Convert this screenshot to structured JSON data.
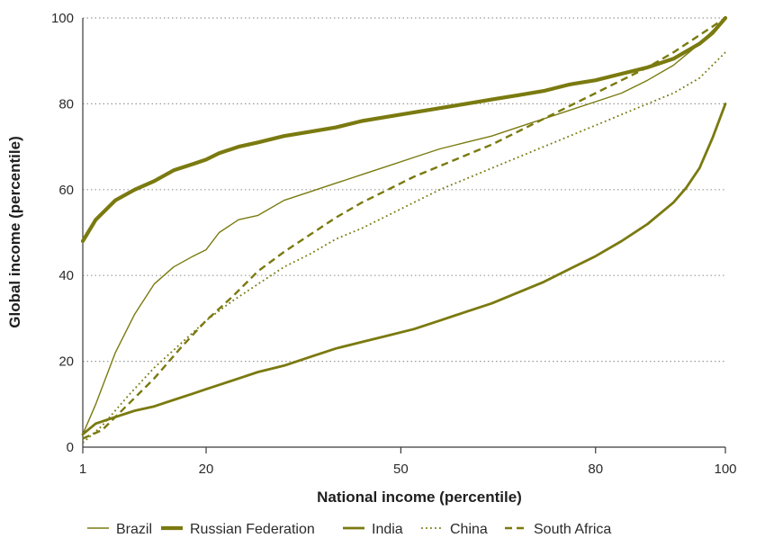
{
  "chart_data": {
    "type": "line",
    "xlabel": "National income (percentile)",
    "ylabel": "Global income (percentile)",
    "xlim": [
      1,
      100
    ],
    "ylim": [
      0,
      100
    ],
    "x_ticks": [
      1,
      20,
      50,
      80,
      100
    ],
    "y_ticks": [
      0,
      20,
      40,
      60,
      80,
      100
    ],
    "grid": "horizontal dotted",
    "legend_position": "bottom",
    "color": "#7a7a10",
    "series": [
      {
        "name": "Brazil",
        "style": "thin-solid",
        "x": [
          1,
          3,
          6,
          9,
          12,
          15,
          18,
          20,
          22,
          25,
          28,
          32,
          36,
          40,
          44,
          48,
          52,
          56,
          60,
          64,
          68,
          72,
          76,
          80,
          84,
          88,
          92,
          96,
          98,
          100
        ],
        "y": [
          3,
          10,
          22,
          31,
          38,
          42,
          44.5,
          46,
          50,
          53,
          54,
          57.5,
          59.5,
          61.5,
          63.5,
          65.5,
          67.5,
          69.5,
          71,
          72.5,
          74.5,
          76.5,
          78.5,
          80.5,
          82.5,
          85.5,
          89,
          94,
          97,
          100
        ]
      },
      {
        "name": "Russian Federation",
        "style": "thick-solid",
        "x": [
          1,
          3,
          6,
          9,
          12,
          15,
          18,
          20,
          22,
          25,
          28,
          32,
          36,
          40,
          44,
          48,
          52,
          56,
          60,
          64,
          68,
          72,
          76,
          80,
          84,
          88,
          92,
          96,
          98,
          100
        ],
        "y": [
          48,
          53,
          57.5,
          60,
          62,
          64.5,
          66,
          67,
          68.5,
          70,
          71,
          72.5,
          73.5,
          74.5,
          76,
          77,
          78,
          79,
          80,
          81,
          82,
          83,
          84.5,
          85.5,
          87,
          88.5,
          90.5,
          94,
          96.5,
          100
        ]
      },
      {
        "name": "India",
        "style": "medium-solid",
        "x": [
          1,
          3,
          6,
          9,
          12,
          15,
          18,
          20,
          22,
          25,
          28,
          32,
          36,
          40,
          44,
          48,
          52,
          56,
          60,
          64,
          68,
          72,
          76,
          80,
          84,
          88,
          92,
          94,
          96,
          98,
          99,
          100
        ],
        "y": [
          3,
          5.5,
          7,
          8.5,
          9.5,
          11,
          12.5,
          13.5,
          14.5,
          16,
          17.5,
          19,
          21,
          23,
          24.5,
          26,
          27.5,
          29.5,
          31.5,
          33.5,
          36,
          38.5,
          41.5,
          44.5,
          48,
          52,
          57,
          60.5,
          65,
          72,
          76,
          80
        ]
      },
      {
        "name": "China",
        "style": "dotted",
        "x": [
          1,
          4,
          8,
          12,
          16,
          20,
          24,
          28,
          32,
          36,
          40,
          44,
          48,
          52,
          56,
          60,
          64,
          68,
          72,
          76,
          80,
          84,
          88,
          92,
          96,
          98,
          100
        ],
        "y": [
          1,
          5,
          12,
          18.5,
          24,
          29.5,
          34,
          38,
          42,
          45,
          48.5,
          51,
          54,
          57,
          60,
          62.5,
          65,
          67.5,
          70,
          72.5,
          75,
          77.5,
          80,
          82.5,
          86,
          89,
          92
        ]
      },
      {
        "name": "South Africa",
        "style": "dashed",
        "x": [
          1,
          4,
          8,
          12,
          16,
          20,
          24,
          28,
          32,
          36,
          40,
          44,
          48,
          52,
          56,
          60,
          64,
          68,
          72,
          76,
          80,
          84,
          88,
          92,
          96,
          100
        ],
        "y": [
          2,
          4,
          10,
          16,
          23,
          29.5,
          35,
          41,
          45.5,
          49.5,
          53.5,
          57,
          60,
          63,
          65.5,
          68,
          70.5,
          73.5,
          76.5,
          79.5,
          82.5,
          85.5,
          88.5,
          92,
          96,
          100
        ]
      }
    ]
  }
}
